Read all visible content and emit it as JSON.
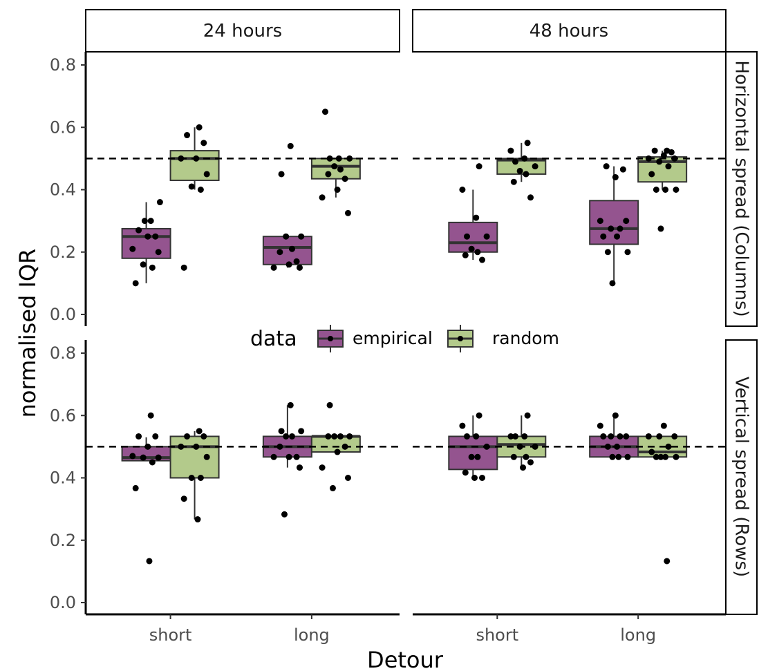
{
  "chart_data": {
    "type": "boxplot",
    "xlabel": "Detour",
    "ylabel": "normalised IQR",
    "categories": [
      "short",
      "long"
    ],
    "column_panels": [
      "24 hours",
      "48 hours"
    ],
    "row_panels": [
      "Horizontal spread (Columns)",
      "Vertical spread (Rows)"
    ],
    "ylim": [
      0,
      0.8
    ],
    "yticks": [
      "0.0",
      "0.2",
      "0.4",
      "0.6",
      "0.8"
    ],
    "reference_line": 0.5,
    "legend": {
      "title": "data",
      "entries": [
        "empirical",
        "random"
      ],
      "position": "inside-center"
    },
    "colors": {
      "empirical": "#94548f",
      "random": "#b3ca8b",
      "outline": "#333333",
      "point": "#000000"
    },
    "series": [
      {
        "name": "empirical",
        "boxes": [
          {
            "row": 0,
            "col": 0,
            "cat": "short",
            "q1": 0.18,
            "median": 0.25,
            "q3": 0.275,
            "whisker_low": 0.1,
            "whisker_high": 0.36,
            "points": [
              0.1,
              0.15,
              0.16,
              0.2,
              0.21,
              0.25,
              0.25,
              0.27,
              0.3,
              0.3,
              0.36
            ]
          },
          {
            "row": 0,
            "col": 0,
            "cat": "long",
            "q1": 0.16,
            "median": 0.215,
            "q3": 0.25,
            "whisker_low": 0.15,
            "whisker_high": 0.25,
            "points": [
              0.15,
              0.15,
              0.16,
              0.17,
              0.2,
              0.21,
              0.25,
              0.25,
              0.45,
              0.54
            ]
          },
          {
            "row": 0,
            "col": 1,
            "cat": "short",
            "q1": 0.2,
            "median": 0.23,
            "q3": 0.295,
            "whisker_low": 0.175,
            "whisker_high": 0.4,
            "points": [
              0.175,
              0.19,
              0.2,
              0.21,
              0.25,
              0.25,
              0.31,
              0.4,
              0.475
            ]
          },
          {
            "row": 0,
            "col": 1,
            "cat": "long",
            "q1": 0.225,
            "median": 0.275,
            "q3": 0.365,
            "whisker_low": 0.1,
            "whisker_high": 0.475,
            "points": [
              0.1,
              0.2,
              0.2,
              0.25,
              0.25,
              0.275,
              0.275,
              0.3,
              0.3,
              0.44,
              0.465,
              0.475
            ]
          },
          {
            "row": 1,
            "col": 0,
            "cat": "short",
            "q1": 0.455,
            "median": 0.465,
            "q3": 0.5,
            "whisker_low": 0.455,
            "whisker_high": 0.53,
            "points": [
              0.133,
              0.367,
              0.45,
              0.465,
              0.465,
              0.47,
              0.5,
              0.533,
              0.533,
              0.6
            ]
          },
          {
            "row": 1,
            "col": 0,
            "cat": "long",
            "q1": 0.467,
            "median": 0.5,
            "q3": 0.533,
            "whisker_low": 0.433,
            "whisker_high": 0.633,
            "points": [
              0.283,
              0.433,
              0.467,
              0.467,
              0.467,
              0.5,
              0.533,
              0.533,
              0.55,
              0.55,
              0.633
            ]
          },
          {
            "row": 1,
            "col": 1,
            "cat": "short",
            "q1": 0.427,
            "median": 0.5,
            "q3": 0.533,
            "whisker_low": 0.4,
            "whisker_high": 0.6,
            "points": [
              0.4,
              0.4,
              0.417,
              0.467,
              0.467,
              0.5,
              0.533,
              0.533,
              0.567,
              0.6
            ]
          },
          {
            "row": 1,
            "col": 1,
            "cat": "long",
            "q1": 0.467,
            "median": 0.5,
            "q3": 0.533,
            "whisker_low": 0.467,
            "whisker_high": 0.6,
            "points": [
              0.467,
              0.467,
              0.467,
              0.5,
              0.5,
              0.533,
              0.533,
              0.533,
              0.533,
              0.567,
              0.6
            ]
          }
        ]
      },
      {
        "name": "random",
        "boxes": [
          {
            "row": 0,
            "col": 0,
            "cat": "short",
            "q1": 0.43,
            "median": 0.5,
            "q3": 0.525,
            "whisker_low": 0.4,
            "whisker_high": 0.6,
            "points": [
              0.15,
              0.4,
              0.41,
              0.45,
              0.5,
              0.5,
              0.55,
              0.575,
              0.6
            ]
          },
          {
            "row": 0,
            "col": 0,
            "cat": "long",
            "q1": 0.435,
            "median": 0.475,
            "q3": 0.5,
            "whisker_low": 0.375,
            "whisker_high": 0.5,
            "points": [
              0.325,
              0.375,
              0.4,
              0.435,
              0.45,
              0.465,
              0.475,
              0.5,
              0.5,
              0.5,
              0.65
            ]
          },
          {
            "row": 0,
            "col": 1,
            "cat": "short",
            "q1": 0.45,
            "median": 0.495,
            "q3": 0.5,
            "whisker_low": 0.425,
            "whisker_high": 0.55,
            "points": [
              0.375,
              0.425,
              0.45,
              0.46,
              0.475,
              0.49,
              0.5,
              0.525,
              0.55
            ]
          },
          {
            "row": 0,
            "col": 1,
            "cat": "long",
            "q1": 0.425,
            "median": 0.49,
            "q3": 0.505,
            "whisker_low": 0.4,
            "whisker_high": 0.525,
            "points": [
              0.275,
              0.4,
              0.4,
              0.4,
              0.45,
              0.475,
              0.49,
              0.5,
              0.5,
              0.51,
              0.52,
              0.525,
              0.525
            ]
          },
          {
            "row": 1,
            "col": 0,
            "cat": "short",
            "q1": 0.4,
            "median": 0.5,
            "q3": 0.533,
            "whisker_low": 0.267,
            "whisker_high": 0.55,
            "points": [
              0.267,
              0.333,
              0.4,
              0.4,
              0.467,
              0.5,
              0.5,
              0.533,
              0.533,
              0.55
            ]
          },
          {
            "row": 1,
            "col": 0,
            "cat": "long",
            "q1": 0.483,
            "median": 0.533,
            "q3": 0.533,
            "whisker_low": 0.483,
            "whisker_high": 0.533,
            "points": [
              0.367,
              0.4,
              0.433,
              0.483,
              0.5,
              0.533,
              0.533,
              0.533,
              0.533,
              0.633
            ]
          },
          {
            "row": 1,
            "col": 1,
            "cat": "short",
            "q1": 0.467,
            "median": 0.507,
            "q3": 0.533,
            "whisker_low": 0.433,
            "whisker_high": 0.6,
            "points": [
              0.433,
              0.45,
              0.467,
              0.467,
              0.5,
              0.5,
              0.533,
              0.533,
              0.533,
              0.6
            ]
          },
          {
            "row": 1,
            "col": 1,
            "cat": "long",
            "q1": 0.467,
            "median": 0.483,
            "q3": 0.533,
            "whisker_low": 0.467,
            "whisker_high": 0.533,
            "points": [
              0.133,
              0.467,
              0.467,
              0.467,
              0.467,
              0.483,
              0.5,
              0.533,
              0.533,
              0.533,
              0.567
            ]
          }
        ]
      }
    ]
  }
}
